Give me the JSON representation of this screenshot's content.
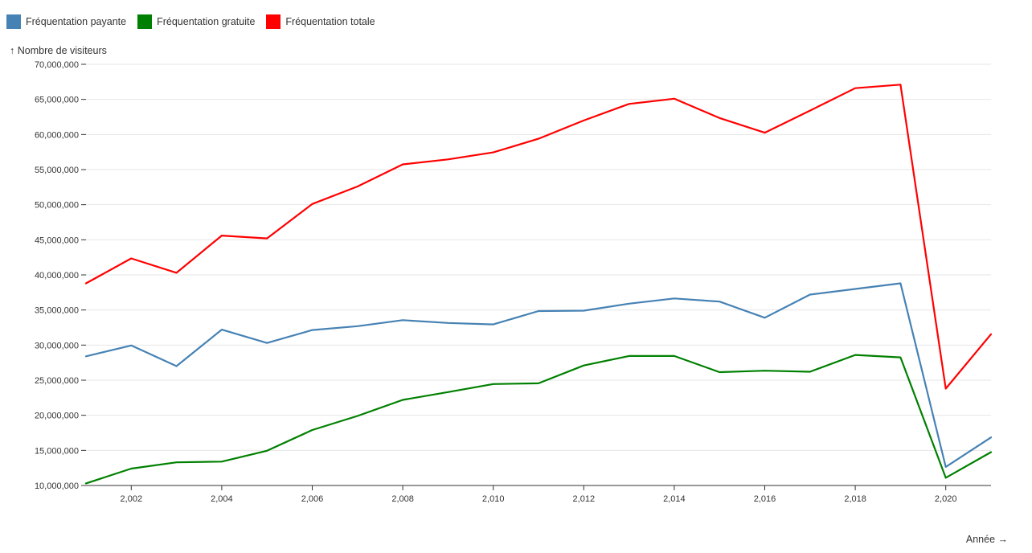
{
  "chart_data": {
    "type": "line",
    "x": [
      2001,
      2002,
      2003,
      2004,
      2005,
      2006,
      2007,
      2008,
      2009,
      2010,
      2011,
      2012,
      2013,
      2014,
      2015,
      2016,
      2017,
      2018,
      2019,
      2020,
      2021
    ],
    "series": [
      {
        "name": "Fréquentation payante",
        "color": "#4682b4",
        "values": [
          28400000,
          29950000,
          27000000,
          32200000,
          30300000,
          32150000,
          32700000,
          33550000,
          33150000,
          32950000,
          34850000,
          34900000,
          35900000,
          36650000,
          36200000,
          33900000,
          37200000,
          38000000,
          38800000,
          12650000,
          16850000
        ]
      },
      {
        "name": "Fréquentation gratuite",
        "color": "#008000",
        "values": [
          10300000,
          12400000,
          13300000,
          13400000,
          14950000,
          17900000,
          19900000,
          22200000,
          23300000,
          24450000,
          24550000,
          27100000,
          28450000,
          28450000,
          26150000,
          26350000,
          26200000,
          28600000,
          28250000,
          11100000,
          14750000
        ]
      },
      {
        "name": "Fréquentation totale",
        "color": "#ff0000",
        "values": [
          38800000,
          42350000,
          40300000,
          45600000,
          45200000,
          50100000,
          52600000,
          55750000,
          56450000,
          57450000,
          59400000,
          62000000,
          64350000,
          65100000,
          62350000,
          60250000,
          63400000,
          66600000,
          67100000,
          23800000,
          31550000
        ]
      }
    ],
    "ylabel": "↑ Nombre de visiteurs",
    "xlabel": "Année →",
    "ylim": [
      10000000,
      70000000
    ],
    "xlim": [
      2001,
      2021
    ],
    "yticks": [
      10000000,
      15000000,
      20000000,
      25000000,
      30000000,
      35000000,
      40000000,
      45000000,
      50000000,
      55000000,
      60000000,
      65000000,
      70000000
    ],
    "ytick_labels": [
      "10,000,000",
      "15,000,000",
      "20,000,000",
      "25,000,000",
      "30,000,000",
      "35,000,000",
      "40,000,000",
      "45,000,000",
      "50,000,000",
      "55,000,000",
      "60,000,000",
      "65,000,000",
      "70,000,000"
    ],
    "xticks": [
      2002,
      2004,
      2006,
      2008,
      2010,
      2012,
      2014,
      2016,
      2018,
      2020
    ],
    "xtick_labels": [
      "2,002",
      "2,004",
      "2,006",
      "2,008",
      "2,010",
      "2,012",
      "2,014",
      "2,016",
      "2,018",
      "2,020"
    ],
    "grid": "horizontal",
    "legend": "top-left"
  }
}
